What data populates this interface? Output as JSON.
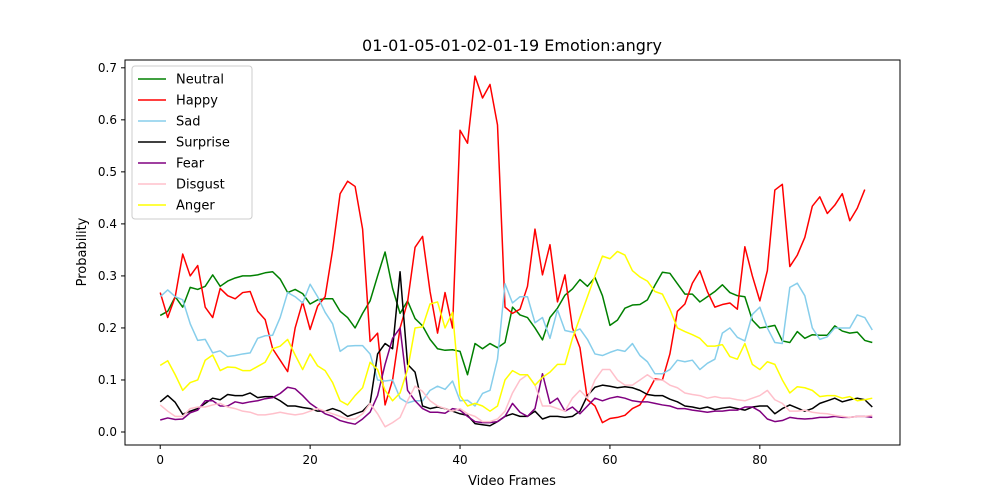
{
  "chart_data": {
    "type": "line",
    "title": "01-01-05-01-02-01-19 Emotion:angry",
    "xlabel": "Video Frames",
    "ylabel": "Probability",
    "xlim": [
      -4.7,
      98.7
    ],
    "ylim": [
      -0.025,
      0.715
    ],
    "xticks": [
      0,
      20,
      40,
      60,
      80
    ],
    "yticks": [
      0.0,
      0.1,
      0.2,
      0.3,
      0.4,
      0.5,
      0.6,
      0.7
    ],
    "xtick_labels": [
      "0",
      "20",
      "40",
      "60",
      "80"
    ],
    "ytick_labels": [
      "0.0",
      "0.1",
      "0.2",
      "0.3",
      "0.4",
      "0.5",
      "0.6",
      "0.7"
    ],
    "grid": false,
    "legend_position": "top-left",
    "series": [
      {
        "name": "Neutral",
        "color": "#008000",
        "values": [
          0.224,
          0.232,
          0.26,
          0.24,
          0.278,
          0.274,
          0.28,
          0.302,
          0.28,
          0.29,
          0.296,
          0.3,
          0.3,
          0.302,
          0.306,
          0.308,
          0.294,
          0.268,
          0.274,
          0.266,
          0.246,
          0.254,
          0.256,
          0.256,
          0.232,
          0.22,
          0.2,
          0.228,
          0.252,
          0.3,
          0.346,
          0.276,
          0.228,
          0.252,
          0.218,
          0.204,
          0.178,
          0.16,
          0.157,
          0.158,
          0.155,
          0.11,
          0.17,
          0.16,
          0.17,
          0.162,
          0.172,
          0.24,
          0.225,
          0.22,
          0.2,
          0.177,
          0.22,
          0.238,
          0.263,
          0.275,
          0.293,
          0.28,
          0.297,
          0.262,
          0.205,
          0.215,
          0.238,
          0.244,
          0.245,
          0.254,
          0.282,
          0.307,
          0.305,
          0.285,
          0.265,
          0.265,
          0.25,
          0.26,
          0.27,
          0.283,
          0.268,
          0.262,
          0.26,
          0.215,
          0.2,
          0.202,
          0.205,
          0.175,
          0.172,
          0.193,
          0.18,
          0.187,
          0.186,
          0.186,
          0.204,
          0.194,
          0.19,
          0.192,
          0.176,
          0.172
        ]
      },
      {
        "name": "Happy",
        "color": "#ff0000",
        "values": [
          0.268,
          0.22,
          0.26,
          0.342,
          0.3,
          0.32,
          0.24,
          0.22,
          0.276,
          0.262,
          0.256,
          0.268,
          0.27,
          0.232,
          0.216,
          0.16,
          0.138,
          0.116,
          0.2,
          0.25,
          0.197,
          0.242,
          0.26,
          0.35,
          0.458,
          0.482,
          0.472,
          0.39,
          0.174,
          0.19,
          0.052,
          0.1,
          0.2,
          0.25,
          0.355,
          0.376,
          0.27,
          0.19,
          0.268,
          0.2,
          0.58,
          0.555,
          0.684,
          0.642,
          0.668,
          0.59,
          0.24,
          0.228,
          0.236,
          0.28,
          0.39,
          0.302,
          0.36,
          0.25,
          0.302,
          0.2,
          0.162,
          0.062,
          0.05,
          0.018,
          0.026,
          0.028,
          0.032,
          0.045,
          0.052,
          0.075,
          0.102,
          0.1,
          0.15,
          0.232,
          0.246,
          0.286,
          0.31,
          0.27,
          0.24,
          0.245,
          0.248,
          0.236,
          0.356,
          0.3,
          0.252,
          0.31,
          0.465,
          0.476,
          0.318,
          0.34,
          0.374,
          0.434,
          0.452,
          0.42,
          0.436,
          0.458,
          0.406,
          0.43,
          0.466
        ]
      },
      {
        "name": "Sad",
        "color": "#87ceeb",
        "values": [
          0.26,
          0.273,
          0.26,
          0.254,
          0.208,
          0.176,
          0.178,
          0.152,
          0.156,
          0.145,
          0.147,
          0.15,
          0.152,
          0.18,
          0.185,
          0.186,
          0.22,
          0.268,
          0.26,
          0.248,
          0.284,
          0.26,
          0.23,
          0.208,
          0.155,
          0.165,
          0.166,
          0.166,
          0.15,
          0.1,
          0.098,
          0.1,
          0.065,
          0.056,
          0.06,
          0.06,
          0.08,
          0.088,
          0.082,
          0.098,
          0.06,
          0.061,
          0.05,
          0.074,
          0.08,
          0.14,
          0.285,
          0.248,
          0.26,
          0.26,
          0.21,
          0.22,
          0.18,
          0.235,
          0.195,
          0.192,
          0.198,
          0.178,
          0.15,
          0.147,
          0.153,
          0.158,
          0.155,
          0.17,
          0.147,
          0.135,
          0.112,
          0.112,
          0.12,
          0.138,
          0.135,
          0.138,
          0.12,
          0.132,
          0.14,
          0.19,
          0.2,
          0.182,
          0.175,
          0.226,
          0.24,
          0.2,
          0.172,
          0.17,
          0.278,
          0.286,
          0.262,
          0.2,
          0.178,
          0.183,
          0.2,
          0.2,
          0.2,
          0.225,
          0.22,
          0.196
        ]
      },
      {
        "name": "Surprise",
        "color": "#000000",
        "values": [
          0.058,
          0.07,
          0.057,
          0.034,
          0.04,
          0.045,
          0.055,
          0.065,
          0.062,
          0.072,
          0.07,
          0.07,
          0.075,
          0.066,
          0.068,
          0.068,
          0.06,
          0.05,
          0.05,
          0.047,
          0.045,
          0.04,
          0.04,
          0.045,
          0.04,
          0.03,
          0.035,
          0.04,
          0.055,
          0.15,
          0.17,
          0.16,
          0.308,
          0.13,
          0.115,
          0.05,
          0.045,
          0.048,
          0.045,
          0.04,
          0.035,
          0.032,
          0.016,
          0.014,
          0.012,
          0.02,
          0.03,
          0.035,
          0.03,
          0.03,
          0.04,
          0.025,
          0.03,
          0.03,
          0.028,
          0.03,
          0.04,
          0.07,
          0.086,
          0.09,
          0.088,
          0.085,
          0.087,
          0.085,
          0.08,
          0.072,
          0.07,
          0.07,
          0.063,
          0.058,
          0.05,
          0.048,
          0.045,
          0.048,
          0.043,
          0.046,
          0.048,
          0.045,
          0.042,
          0.048,
          0.05,
          0.05,
          0.035,
          0.045,
          0.052,
          0.046,
          0.04,
          0.045,
          0.055,
          0.06,
          0.065,
          0.058,
          0.062,
          0.065,
          0.062,
          0.048
        ]
      },
      {
        "name": "Fear",
        "color": "#800080",
        "values": [
          0.023,
          0.027,
          0.024,
          0.025,
          0.037,
          0.042,
          0.06,
          0.06,
          0.05,
          0.05,
          0.058,
          0.055,
          0.058,
          0.06,
          0.064,
          0.066,
          0.074,
          0.086,
          0.083,
          0.07,
          0.055,
          0.045,
          0.035,
          0.03,
          0.022,
          0.018,
          0.015,
          0.025,
          0.038,
          0.07,
          0.13,
          0.18,
          0.2,
          0.08,
          0.06,
          0.045,
          0.038,
          0.038,
          0.036,
          0.045,
          0.042,
          0.03,
          0.02,
          0.018,
          0.018,
          0.02,
          0.03,
          0.055,
          0.038,
          0.03,
          0.045,
          0.112,
          0.055,
          0.065,
          0.04,
          0.048,
          0.035,
          0.05,
          0.065,
          0.06,
          0.065,
          0.068,
          0.065,
          0.06,
          0.058,
          0.058,
          0.055,
          0.052,
          0.05,
          0.045,
          0.045,
          0.042,
          0.04,
          0.038,
          0.04,
          0.04,
          0.042,
          0.042,
          0.048,
          0.048,
          0.04,
          0.025,
          0.02,
          0.022,
          0.028,
          0.026,
          0.025,
          0.026,
          0.028,
          0.028,
          0.03,
          0.028,
          0.028,
          0.03,
          0.03,
          0.028
        ]
      },
      {
        "name": "Disgust",
        "color": "#ffc0cb",
        "values": [
          0.052,
          0.04,
          0.03,
          0.03,
          0.045,
          0.048,
          0.048,
          0.052,
          0.055,
          0.048,
          0.045,
          0.04,
          0.038,
          0.033,
          0.033,
          0.035,
          0.038,
          0.035,
          0.033,
          0.035,
          0.04,
          0.045,
          0.04,
          0.035,
          0.03,
          0.025,
          0.025,
          0.035,
          0.055,
          0.035,
          0.01,
          0.018,
          0.028,
          0.06,
          0.088,
          0.078,
          0.06,
          0.05,
          0.045,
          0.04,
          0.045,
          0.035,
          0.03,
          0.02,
          0.02,
          0.025,
          0.04,
          0.075,
          0.1,
          0.11,
          0.09,
          0.05,
          0.05,
          0.045,
          0.04,
          0.065,
          0.08,
          0.065,
          0.1,
          0.12,
          0.12,
          0.1,
          0.09,
          0.09,
          0.1,
          0.11,
          0.1,
          0.1,
          0.09,
          0.085,
          0.075,
          0.072,
          0.07,
          0.065,
          0.068,
          0.065,
          0.065,
          0.062,
          0.06,
          0.065,
          0.07,
          0.08,
          0.062,
          0.055,
          0.04,
          0.04,
          0.042,
          0.038,
          0.036,
          0.035,
          0.032,
          0.03,
          0.028,
          0.03,
          0.03,
          0.032
        ]
      },
      {
        "name": "Anger",
        "color": "#ffff00",
        "values": [
          0.128,
          0.137,
          0.11,
          0.08,
          0.095,
          0.1,
          0.138,
          0.148,
          0.118,
          0.125,
          0.124,
          0.118,
          0.118,
          0.126,
          0.134,
          0.16,
          0.165,
          0.178,
          0.148,
          0.12,
          0.15,
          0.127,
          0.118,
          0.095,
          0.06,
          0.052,
          0.07,
          0.085,
          0.134,
          0.12,
          0.08,
          0.06,
          0.075,
          0.12,
          0.2,
          0.202,
          0.246,
          0.25,
          0.2,
          0.23,
          0.07,
          0.05,
          0.055,
          0.05,
          0.04,
          0.05,
          0.1,
          0.118,
          0.11,
          0.11,
          0.09,
          0.105,
          0.115,
          0.13,
          0.13,
          0.18,
          0.22,
          0.26,
          0.3,
          0.338,
          0.333,
          0.347,
          0.34,
          0.31,
          0.298,
          0.29,
          0.27,
          0.265,
          0.236,
          0.2,
          0.193,
          0.187,
          0.18,
          0.165,
          0.165,
          0.168,
          0.145,
          0.14,
          0.17,
          0.13,
          0.12,
          0.135,
          0.13,
          0.1,
          0.075,
          0.087,
          0.085,
          0.08,
          0.068,
          0.07,
          0.07,
          0.065,
          0.068,
          0.06,
          0.062,
          0.065
        ]
      }
    ]
  }
}
